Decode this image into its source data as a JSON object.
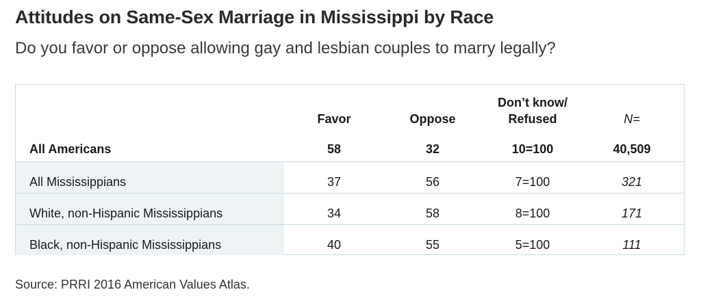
{
  "title": "Attitudes on Same-Sex Marriage in Mississippi by Race",
  "subtitle": "Do you favor or oppose allowing gay and lesbian couples to marry legally?",
  "source": "Source: PRRI 2016 American Values Atlas.",
  "chart_data": {
    "type": "table",
    "columns": [
      "",
      "Favor",
      "Oppose",
      "Don’t know/ Refused",
      "N="
    ],
    "header": {
      "favor": "Favor",
      "oppose": "Oppose",
      "dk_line1": "Don’t know/",
      "dk_line2": "Refused",
      "n": "N="
    },
    "rows": [
      {
        "label": "All Americans",
        "favor": "58",
        "oppose": "32",
        "dk": "10=100",
        "n": "40,509"
      },
      {
        "label": "All Mississippians",
        "favor": "37",
        "oppose": "56",
        "dk": "7=100",
        "n": "321"
      },
      {
        "label": "White, non-Hispanic Mississippians",
        "favor": "34",
        "oppose": "58",
        "dk": "8=100",
        "n": "171"
      },
      {
        "label": "Black, non-Hispanic Mississippians",
        "favor": "40",
        "oppose": "55",
        "dk": "5=100",
        "n": "111"
      }
    ]
  }
}
